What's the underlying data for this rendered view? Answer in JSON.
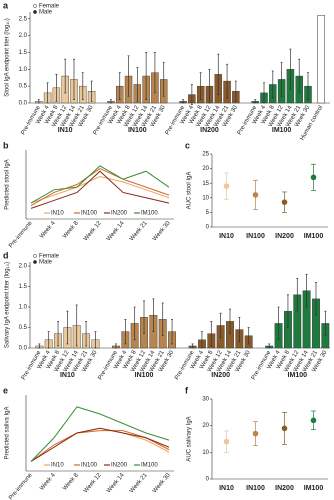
{
  "chart_data": [
    {
      "type": "bar",
      "label": "a",
      "ylabel": "Stool IgA endpoint titer (log₁₀)",
      "legend": "top-left",
      "legend_entries": [
        {
          "name": "Female",
          "marker": "open"
        },
        {
          "name": "Male",
          "marker": "filled"
        }
      ],
      "categories": [
        "Pre-immune",
        "Week 4",
        "Week 8",
        "Week 12",
        "Week 14",
        "Week 21",
        "Week 30"
      ],
      "groups": [
        {
          "name": "IN10",
          "color": "#e9c89b",
          "values": [
            0.05,
            0.3,
            0.45,
            0.8,
            0.7,
            0.5,
            0.35
          ],
          "errors": [
            0.05,
            0.3,
            0.4,
            0.5,
            0.6,
            0.4,
            0.3
          ]
        },
        {
          "name": "IN100",
          "color": "#b9854f",
          "values": [
            0.05,
            0.5,
            0.8,
            0.55,
            0.8,
            0.9,
            0.7
          ],
          "errors": [
            0.05,
            0.4,
            0.6,
            0.5,
            0.7,
            0.6,
            0.5
          ]
        },
        {
          "name": "IN200",
          "color": "#8a5a2b",
          "values": [
            0.05,
            0.25,
            0.5,
            0.5,
            0.85,
            0.65,
            0.35
          ],
          "errors": [
            0.05,
            0.3,
            0.4,
            0.5,
            0.6,
            0.5,
            0.3
          ]
        },
        {
          "name": "IM100",
          "color": "#1f7a3d",
          "values": [
            0.05,
            0.3,
            0.55,
            0.7,
            1.0,
            0.8,
            0.5
          ],
          "errors": [
            0.05,
            0.3,
            0.4,
            0.5,
            0.6,
            0.5,
            0.4
          ]
        }
      ],
      "control": {
        "name": "Human control",
        "value": 2.6,
        "color": "#ffffff"
      },
      "ylim": [
        0,
        2.7
      ],
      "yticks": [
        {
          "value": 0,
          "label": "0.0"
        },
        0.5,
        {
          "value": 1,
          "label": "1.0"
        },
        1.5,
        {
          "value": 2,
          "label": "2.0"
        },
        2.5
      ]
    },
    {
      "type": "line",
      "label": "b",
      "ylabel": "Predicted stool IgA",
      "legend": "bottom",
      "categories": [
        "Pre-immune",
        "Week 4",
        "Week 8",
        "Week 12",
        "Week 14",
        "Week 21",
        "Week 30"
      ],
      "series": [
        {
          "name": "IN10",
          "color": "#eda464",
          "values": [
            0.3,
            0.45,
            0.6,
            0.8,
            0.7,
            0.55,
            0.4
          ]
        },
        {
          "name": "IN100",
          "color": "#d0692a",
          "values": [
            0.25,
            0.5,
            0.65,
            0.95,
            0.75,
            0.6,
            0.45
          ]
        },
        {
          "name": "IN200",
          "color": "#8b2a10",
          "values": [
            0.2,
            0.35,
            0.5,
            0.9,
            0.5,
            0.4,
            0.3
          ]
        },
        {
          "name": "IM100",
          "color": "#3c8c3c",
          "values": [
            0.3,
            0.55,
            0.6,
            1.0,
            0.75,
            0.9,
            0.6
          ]
        }
      ],
      "ylim": [
        0,
        1.3
      ]
    },
    {
      "type": "dot",
      "label": "c",
      "ylabel": "AUC stool IgA",
      "categories": [
        "IN10",
        "IN100",
        "IN200",
        "IM100"
      ],
      "colors": [
        "#e9c89b",
        "#b9854f",
        "#8a5a2b",
        "#1f7a3d"
      ],
      "values": [
        14,
        11,
        8.5,
        17
      ],
      "errors": [
        4.5,
        5,
        3.5,
        4.5
      ],
      "ylim": [
        0,
        25
      ],
      "yticks": [
        0,
        5,
        10,
        15,
        20,
        25
      ]
    },
    {
      "type": "bar",
      "label": "d",
      "ylabel": "Salivary IgA endpoint titer (log₁₀)",
      "legend": "top-left",
      "legend_entries": [
        {
          "name": "Female",
          "marker": "open"
        },
        {
          "name": "Male",
          "marker": "filled"
        }
      ],
      "categories": [
        "Pre-immune",
        "Week 4",
        "Week 8",
        "Week 12",
        "Week 14",
        "Week 21",
        "Week 30"
      ],
      "groups": [
        {
          "name": "IN10",
          "color": "#e9c89b",
          "values": [
            0.05,
            0.2,
            0.35,
            0.5,
            0.55,
            0.35,
            0.2
          ],
          "errors": [
            0.05,
            0.2,
            0.3,
            0.4,
            0.5,
            0.3,
            0.2
          ]
        },
        {
          "name": "IN100",
          "color": "#b9854f",
          "values": [
            0.05,
            0.4,
            0.6,
            0.75,
            0.8,
            0.7,
            0.4
          ],
          "errors": [
            0.05,
            0.3,
            0.4,
            0.4,
            0.4,
            0.4,
            0.3
          ]
        },
        {
          "name": "IN200",
          "color": "#8a5a2b",
          "values": [
            0.05,
            0.2,
            0.35,
            0.55,
            0.65,
            0.45,
            0.3
          ],
          "errors": [
            0.05,
            0.2,
            0.3,
            0.3,
            0.3,
            0.3,
            0.2
          ]
        },
        {
          "name": "IM100",
          "color": "#1f7a3d",
          "values": [
            0.05,
            0.6,
            0.9,
            1.3,
            1.4,
            1.2,
            0.6
          ],
          "errors": [
            0.05,
            0.4,
            0.4,
            0.4,
            0.4,
            0.4,
            0.3
          ]
        }
      ],
      "ylim": [
        0,
        2.1
      ],
      "yticks": [
        {
          "value": 0,
          "label": "0.0"
        },
        0.5,
        {
          "value": 1,
          "label": "1.0"
        },
        1.5,
        {
          "value": 2,
          "label": "2.0"
        }
      ]
    },
    {
      "type": "line",
      "label": "e",
      "ylabel": "Predicted saliva IgA",
      "legend": "bottom",
      "categories": [
        "Pre-immune",
        "Week 4",
        "Week 8",
        "Week 12",
        "Week 14",
        "Week 21",
        "Week 30"
      ],
      "series": [
        {
          "name": "IN10",
          "color": "#eda464",
          "values": [
            0.2,
            0.5,
            0.8,
            0.9,
            0.8,
            0.65,
            0.4
          ]
        },
        {
          "name": "IN100",
          "color": "#d0692a",
          "values": [
            0.2,
            0.55,
            0.8,
            0.85,
            0.85,
            0.7,
            0.45
          ]
        },
        {
          "name": "IN200",
          "color": "#8b2a10",
          "values": [
            0.2,
            0.5,
            0.8,
            0.9,
            0.8,
            0.7,
            0.5
          ]
        },
        {
          "name": "IM100",
          "color": "#3c8c3c",
          "values": [
            0.2,
            0.7,
            1.35,
            1.2,
            1.0,
            0.8,
            0.65
          ]
        }
      ],
      "ylim": [
        0,
        1.6
      ]
    },
    {
      "type": "dot",
      "label": "f",
      "ylabel": "AUC salivary IgA",
      "categories": [
        "IN10",
        "IN100",
        "IN200",
        "IM100"
      ],
      "colors": [
        "#e9c89b",
        "#b9854f",
        "#8a5a2b",
        "#1f7a3d"
      ],
      "values": [
        14,
        17,
        19,
        22
      ],
      "errors": [
        4,
        4.5,
        6,
        3.5
      ],
      "ylim": [
        0,
        30
      ],
      "yticks": [
        0,
        10,
        20,
        30
      ]
    }
  ]
}
